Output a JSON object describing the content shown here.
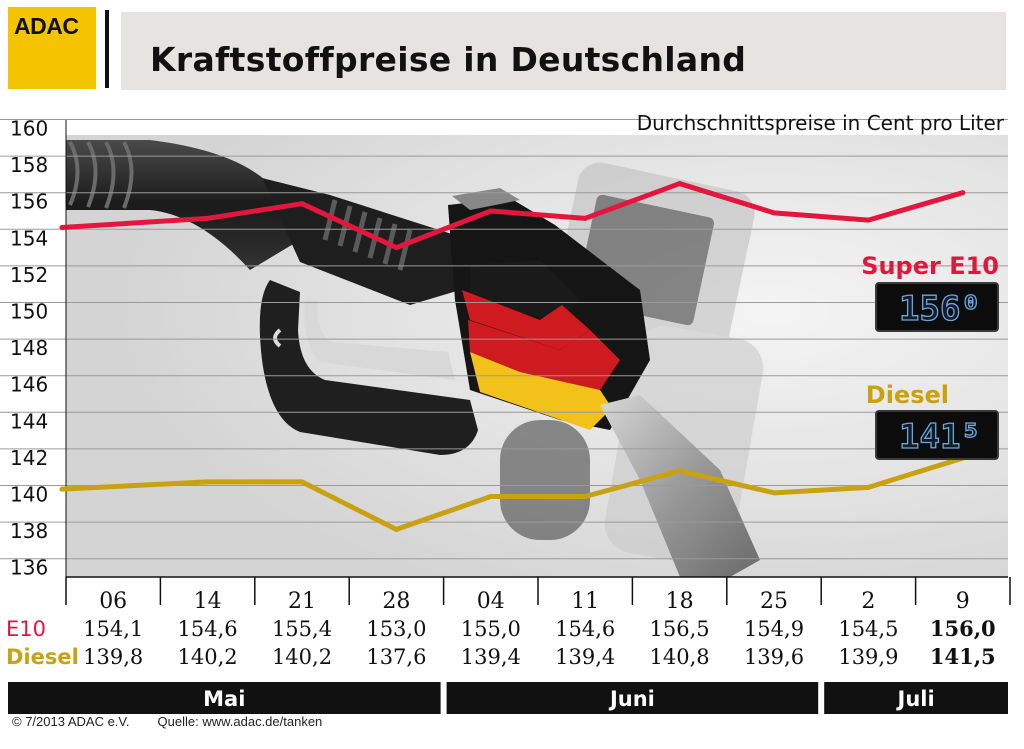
{
  "brand": {
    "logo_text": "ADAC",
    "logo_color": "#f5c400"
  },
  "title": "Kraftstoffpreise in Deutschland",
  "footer": {
    "copyright": "© 7/2013  ADAC e.V.",
    "source": "Quelle: www.adac.de/tanken"
  },
  "colors": {
    "e10": "#e3173e",
    "diesel": "#c9a212",
    "grid": "#9a9a9a",
    "month_bar": "#111111"
  },
  "chart_data": {
    "type": "line",
    "subtitle": "Durchschnittspreise in Cent pro Liter",
    "ylim": [
      135,
      160
    ],
    "yticks": [
      136,
      138,
      140,
      142,
      144,
      146,
      148,
      150,
      152,
      154,
      156,
      158,
      160
    ],
    "grid": true,
    "categories": [
      "06",
      "14",
      "21",
      "28",
      "04",
      "11",
      "18",
      "25",
      "2",
      "9"
    ],
    "months": [
      {
        "label": "Mai",
        "span": [
          0,
          3
        ]
      },
      {
        "label": "Juni",
        "span": [
          4,
          7
        ]
      },
      {
        "label": "Juli",
        "span": [
          8,
          9
        ]
      }
    ],
    "series": [
      {
        "name": "Super E10",
        "row_label": "E10",
        "color": "#e3173e",
        "values": [
          154.1,
          154.6,
          155.4,
          153.0,
          155.0,
          154.6,
          156.5,
          154.9,
          154.5,
          156.0
        ],
        "value_labels": [
          "154,1",
          "154,6",
          "155,4",
          "153,0",
          "155,0",
          "154,6",
          "156,5",
          "154,9",
          "154,5",
          "156,0"
        ],
        "current_display": "156⁰"
      },
      {
        "name": "Diesel",
        "row_label": "Diesel",
        "color": "#c9a212",
        "values": [
          139.8,
          140.2,
          140.2,
          137.6,
          139.4,
          139.4,
          140.8,
          139.6,
          139.9,
          141.5
        ],
        "value_labels": [
          "139,8",
          "140,2",
          "140,2",
          "137,6",
          "139,4",
          "139,4",
          "140,8",
          "139,6",
          "139,9",
          "141,5"
        ],
        "current_display": "141⁵"
      }
    ]
  }
}
